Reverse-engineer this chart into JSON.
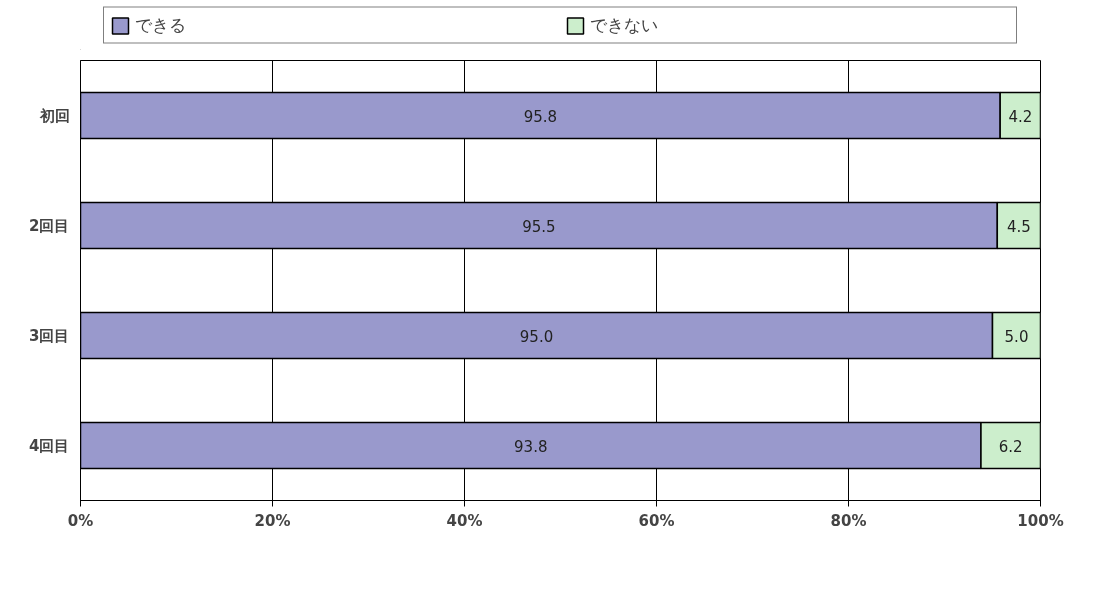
{
  "chart_data": {
    "type": "bar",
    "orientation": "horizontal",
    "stacked": true,
    "categories": [
      "初回",
      "2回目",
      "3回目",
      "4回目"
    ],
    "series": [
      {
        "name": "できる",
        "color": "#9999cc",
        "values": [
          95.8,
          95.5,
          95.0,
          93.8
        ],
        "value_labels": [
          "95.8",
          "95.5",
          "95.0",
          "93.8"
        ]
      },
      {
        "name": "できない",
        "color": "#cceecc",
        "values": [
          4.2,
          4.5,
          5.0,
          6.2
        ],
        "value_labels": [
          "4.2",
          "4.5",
          "5.0",
          "6.2"
        ]
      }
    ],
    "xlim": [
      0,
      100
    ],
    "xticks": [
      {
        "value": 0,
        "label": "0%"
      },
      {
        "value": 20,
        "label": "20%"
      },
      {
        "value": 40,
        "label": "40%"
      },
      {
        "value": 60,
        "label": "60%"
      },
      {
        "value": 80,
        "label": "80%"
      },
      {
        "value": 100,
        "label": "100%"
      }
    ],
    "grid": "x",
    "legend": "top"
  }
}
